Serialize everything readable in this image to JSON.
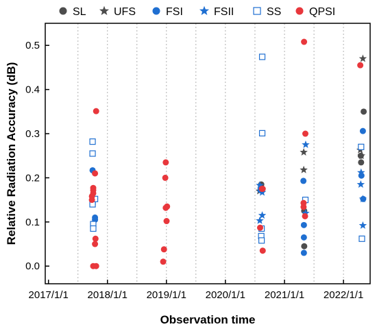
{
  "chart_data": {
    "type": "scatter",
    "xlabel": "Observation time",
    "ylabel": "Relative Radiation Accuracy (dB)",
    "xticks": [
      "2017/1/1",
      "2018/1/1",
      "2019/1/1",
      "2020/1/1",
      "2021/1/1",
      "2022/1/1"
    ],
    "yticks": [
      "0.0",
      "0.1",
      "0.2",
      "0.3",
      "0.4",
      "0.5"
    ],
    "xlim": [
      "2016/12/12",
      "2022/6/15"
    ],
    "ylim": [
      -0.04,
      0.55
    ],
    "grid": "vertical dotted lines between yearly ticks",
    "legend_position": "top",
    "series": [
      {
        "name": "SL",
        "marker": "circle-filled",
        "color": "#4d4d4d",
        "points": [
          {
            "x": "2020/8/10",
            "y": 0.185
          },
          {
            "x": "2020/8/13",
            "y": 0.172
          },
          {
            "x": "2021/5/3",
            "y": 0.045
          },
          {
            "x": "2021/5/3",
            "y": 0.125
          },
          {
            "x": "2022/4/18",
            "y": 0.25
          },
          {
            "x": "2022/4/20",
            "y": 0.235
          },
          {
            "x": "2022/5/6",
            "y": 0.35
          }
        ]
      },
      {
        "name": "UFS",
        "marker": "star",
        "color": "#4d4d4d",
        "points": [
          {
            "x": "2020/7/30",
            "y": 0.17
          },
          {
            "x": "2021/4/30",
            "y": 0.258
          },
          {
            "x": "2021/4/30",
            "y": 0.218
          },
          {
            "x": "2022/4/15",
            "y": 0.263
          },
          {
            "x": "2022/5/1",
            "y": 0.47
          },
          {
            "x": "2022/4/22",
            "y": 0.25
          }
        ]
      },
      {
        "name": "FSI",
        "marker": "circle-filled",
        "color": "#1f6fd1",
        "points": [
          {
            "x": "2017/10/1",
            "y": 0.217
          },
          {
            "x": "2017/10/16",
            "y": 0.11
          },
          {
            "x": "2017/10/16",
            "y": 0.105
          },
          {
            "x": "2020/8/5",
            "y": 0.172
          },
          {
            "x": "2021/4/28",
            "y": 0.193
          },
          {
            "x": "2021/5/1",
            "y": 0.093
          },
          {
            "x": "2021/5/1",
            "y": 0.065
          },
          {
            "x": "2021/5/1",
            "y": 0.03
          },
          {
            "x": "2022/4/22",
            "y": 0.205
          },
          {
            "x": "2022/5/1",
            "y": 0.306
          },
          {
            "x": "2022/5/3",
            "y": 0.152
          }
        ]
      },
      {
        "name": "FSII",
        "marker": "star",
        "color": "#1f6fd1",
        "points": [
          {
            "x": "2020/8/1",
            "y": 0.183
          },
          {
            "x": "2020/8/16",
            "y": 0.167
          },
          {
            "x": "2020/8/1",
            "y": 0.103
          },
          {
            "x": "2020/8/16",
            "y": 0.115
          },
          {
            "x": "2021/5/12",
            "y": 0.275
          },
          {
            "x": "2021/5/12",
            "y": 0.12
          },
          {
            "x": "2022/4/18",
            "y": 0.185
          },
          {
            "x": "2022/4/20",
            "y": 0.212
          },
          {
            "x": "2022/5/1",
            "y": 0.152
          },
          {
            "x": "2022/5/1",
            "y": 0.092
          }
        ]
      },
      {
        "name": "SS",
        "marker": "square-open",
        "color": "#1f6fd1",
        "points": [
          {
            "x": "2017/10/1",
            "y": 0.282
          },
          {
            "x": "2017/10/1",
            "y": 0.255
          },
          {
            "x": "2017/10/1",
            "y": 0.145
          },
          {
            "x": "2017/10/1",
            "y": 0.14
          },
          {
            "x": "2017/10/5",
            "y": 0.095
          },
          {
            "x": "2017/10/5",
            "y": 0.085
          },
          {
            "x": "2017/10/16",
            "y": 0.152
          },
          {
            "x": "2020/8/16",
            "y": 0.474
          },
          {
            "x": "2020/8/16",
            "y": 0.301
          },
          {
            "x": "2020/8/12",
            "y": 0.085
          },
          {
            "x": "2020/8/10",
            "y": 0.068
          },
          {
            "x": "2020/8/12",
            "y": 0.058
          },
          {
            "x": "2021/5/10",
            "y": 0.15
          },
          {
            "x": "2022/4/20",
            "y": 0.27
          },
          {
            "x": "2022/4/25",
            "y": 0.062
          }
        ]
      },
      {
        "name": "QPSI",
        "marker": "circle-filled",
        "color": "#e8373c",
        "points": [
          {
            "x": "2017/10/23",
            "y": 0.351
          },
          {
            "x": "2017/10/16",
            "y": 0.21
          },
          {
            "x": "2017/10/5",
            "y": 0.177
          },
          {
            "x": "2017/10/5",
            "y": 0.172
          },
          {
            "x": "2017/10/5",
            "y": 0.165
          },
          {
            "x": "2017/9/27",
            "y": 0.158
          },
          {
            "x": "2017/9/27",
            "y": 0.15
          },
          {
            "x": "2017/10/19",
            "y": 0.062
          },
          {
            "x": "2017/10/16",
            "y": 0.05
          },
          {
            "x": "2017/10/5",
            "y": 0.0
          },
          {
            "x": "2017/10/23",
            "y": 0.0
          },
          {
            "x": "2018/12/17",
            "y": 0.038
          },
          {
            "x": "2018/12/12",
            "y": 0.01
          },
          {
            "x": "2018/12/25",
            "y": 0.2
          },
          {
            "x": "2018/12/28",
            "y": 0.235
          },
          {
            "x": "2018/12/28",
            "y": 0.132
          },
          {
            "x": "2019/1/5",
            "y": 0.135
          },
          {
            "x": "2019/1/2",
            "y": 0.102
          },
          {
            "x": "2020/8/14",
            "y": 0.175
          },
          {
            "x": "2020/8/19",
            "y": 0.175
          },
          {
            "x": "2020/8/3",
            "y": 0.087
          },
          {
            "x": "2020/8/19",
            "y": 0.035
          },
          {
            "x": "2021/5/2",
            "y": 0.508
          },
          {
            "x": "2021/5/10",
            "y": 0.3
          },
          {
            "x": "2021/4/29",
            "y": 0.143
          },
          {
            "x": "2021/4/29",
            "y": 0.134
          },
          {
            "x": "2021/5/8",
            "y": 0.113
          },
          {
            "x": "2022/4/15",
            "y": 0.455
          }
        ]
      }
    ]
  }
}
